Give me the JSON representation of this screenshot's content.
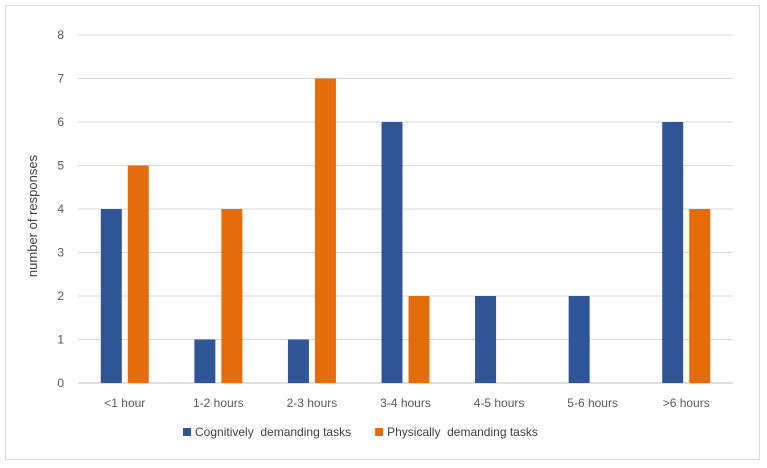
{
  "chart_data": {
    "type": "bar",
    "title": "",
    "xlabel": "",
    "ylabel": "number of responses",
    "ylim": [
      0,
      8
    ],
    "yticks": [
      0,
      1,
      2,
      3,
      4,
      5,
      6,
      7,
      8
    ],
    "grid": true,
    "legend_position": "bottom",
    "categories": [
      "<1 hour",
      "1-2 hours",
      "2-3 hours",
      "3-4 hours",
      "4-5 hours",
      "5-6 hours",
      ">6 hours"
    ],
    "series": [
      {
        "name": "Cognitively  demanding tasks",
        "color": "#2F5597",
        "values": [
          4,
          1,
          1,
          6,
          2,
          2,
          6
        ]
      },
      {
        "name": "Physically  demanding tasks",
        "color": "#E46C0A",
        "values": [
          5,
          4,
          7,
          2,
          0,
          0,
          4
        ]
      }
    ],
    "colors": {
      "grid": "#d9d9d9",
      "axis": "#bfbfbf"
    }
  }
}
